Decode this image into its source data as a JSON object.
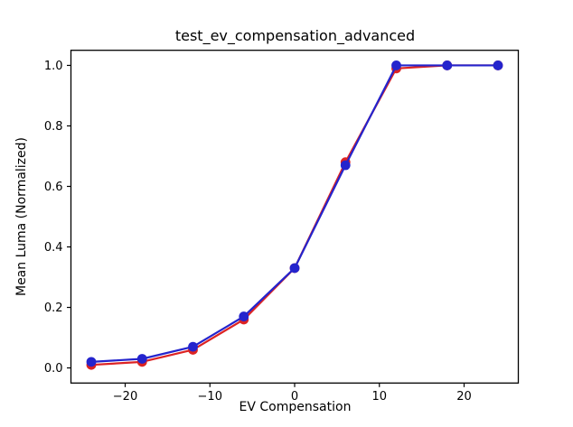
{
  "figure": {
    "background": "#ffffff"
  },
  "chart_data": {
    "type": "line",
    "title": "test_ev_compensation_advanced",
    "xlabel": "EV Compensation",
    "ylabel": "Mean Luma (Normalized)",
    "x": [
      -24,
      -18,
      -12,
      -6,
      0,
      6,
      12,
      18,
      24
    ],
    "series": [
      {
        "name": "red-series",
        "color": "#dc2323",
        "marker": "circle",
        "values": [
          0.01,
          0.02,
          0.06,
          0.16,
          0.33,
          0.68,
          0.99,
          1.0,
          1.0
        ]
      },
      {
        "name": "blue-series",
        "color": "#2424cd",
        "marker": "circle",
        "values": [
          0.02,
          0.03,
          0.07,
          0.17,
          0.33,
          0.67,
          1.0,
          1.0,
          1.0
        ]
      }
    ],
    "xticks": [
      -20,
      -10,
      0,
      10,
      20
    ],
    "xtick_labels": [
      "−20",
      "−10",
      "0",
      "10",
      "20"
    ],
    "yticks": [
      0.0,
      0.2,
      0.4,
      0.6,
      0.8,
      1.0
    ],
    "ytick_labels": [
      "0.0",
      "0.2",
      "0.4",
      "0.6",
      "0.8",
      "1.0"
    ],
    "xlim": [
      -26.4,
      26.4
    ],
    "ylim": [
      -0.05,
      1.05
    ],
    "grid": false,
    "legend": null,
    "axes_edge_color": "#000000"
  }
}
